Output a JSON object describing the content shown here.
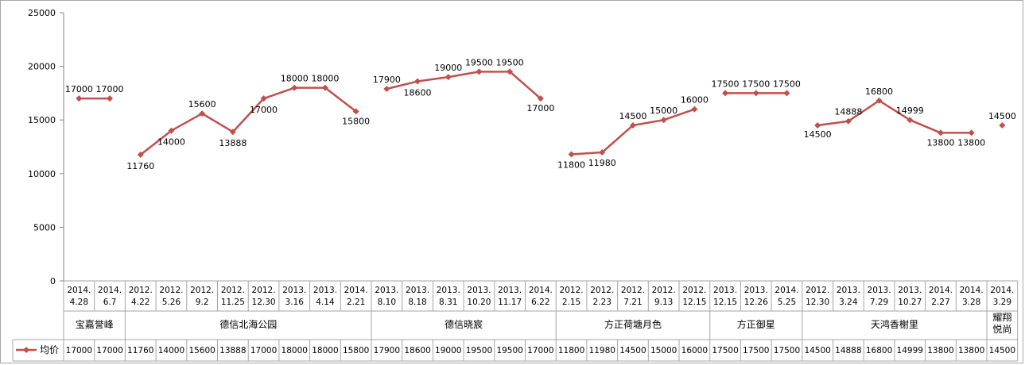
{
  "chart_data": {
    "type": "line",
    "ylim": [
      0,
      25000
    ],
    "yticks": [
      "0",
      "5000",
      "10000",
      "15000",
      "20000",
      "25000"
    ],
    "grid": false,
    "legend_position": "bottom-left (in data table)",
    "colors": {
      "series": "#c0504d",
      "axis": "#868686",
      "table_border": "#a6a6a6"
    },
    "groups": [
      {
        "name": "宝嘉誉峰",
        "dates": [
          [
            "2014.",
            "4.28"
          ],
          [
            "2014.",
            "6.7"
          ]
        ],
        "values": [
          17000,
          17000
        ]
      },
      {
        "name": "德信北海公园",
        "dates": [
          [
            "2012.",
            "4.22"
          ],
          [
            "2012.",
            "5.26"
          ],
          [
            "2012.",
            "9.2"
          ],
          [
            "2012.",
            "11.25"
          ],
          [
            "2012.",
            "12.30"
          ],
          [
            "2013.",
            "3.16"
          ],
          [
            "2013.",
            "4.14"
          ],
          [
            "2014.",
            "2.21"
          ]
        ],
        "values": [
          11760,
          14000,
          15600,
          13888,
          17000,
          18000,
          18000,
          15800
        ]
      },
      {
        "name": "德信晓宸",
        "dates": [
          [
            "2013.",
            "8.10"
          ],
          [
            "2013.",
            "8.18"
          ],
          [
            "2013.",
            "8.31"
          ],
          [
            "2013.",
            "10.20"
          ],
          [
            "2013.",
            "11.17"
          ],
          [
            "2014.",
            "6.22"
          ]
        ],
        "values": [
          17900,
          18600,
          19000,
          19500,
          19500,
          17000
        ]
      },
      {
        "name": "方正荷塘月色",
        "dates": [
          [
            "2012.",
            "2.15"
          ],
          [
            "2012.",
            "2.23"
          ],
          [
            "2012.",
            "7.21"
          ],
          [
            "2012.",
            "9.13"
          ],
          [
            "2012.",
            "12.15"
          ]
        ],
        "values": [
          11800,
          11980,
          14500,
          15000,
          16000
        ]
      },
      {
        "name": "方正御星",
        "dates": [
          [
            "2013.",
            "12.15"
          ],
          [
            "2013.",
            "12.26"
          ],
          [
            "2014.",
            "5.25"
          ]
        ],
        "values": [
          17500,
          17500,
          17500
        ]
      },
      {
        "name": "天鸿香榭里",
        "dates": [
          [
            "2012.",
            "12.30"
          ],
          [
            "2013.",
            "3.24"
          ],
          [
            "2013.",
            "7.29"
          ],
          [
            "2013.",
            "10.27"
          ],
          [
            "2014.",
            "2.27"
          ],
          [
            "2014.",
            "3.28"
          ]
        ],
        "values": [
          14500,
          14888,
          16800,
          14999,
          13800,
          13800
        ]
      },
      {
        "name": "耀翔悦尚",
        "dates": [
          [
            "2014.",
            "3.29"
          ]
        ],
        "values": [
          14500
        ]
      }
    ],
    "series": [
      {
        "name": "均价"
      }
    ]
  }
}
